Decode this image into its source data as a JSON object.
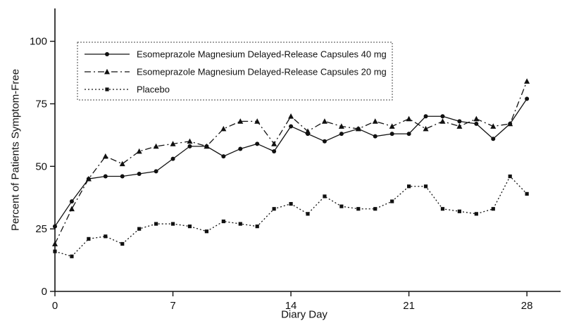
{
  "chart_data": {
    "type": "line",
    "title": "",
    "xlabel": "Diary Day",
    "ylabel": "Percent of Patients Symptom-Free",
    "xlim": [
      0,
      30
    ],
    "ylim": [
      0,
      112
    ],
    "x_ticks": [
      0,
      7,
      14,
      21,
      28
    ],
    "y_ticks": [
      0,
      25,
      50,
      75,
      100
    ],
    "grid": false,
    "legend_position": "upper-left",
    "line_color": "#111111",
    "background_color": "#ffffff",
    "x": [
      0,
      1,
      2,
      3,
      4,
      5,
      6,
      7,
      8,
      9,
      10,
      11,
      12,
      13,
      14,
      15,
      16,
      17,
      18,
      19,
      20,
      21,
      22,
      23,
      24,
      25,
      26,
      27,
      28
    ],
    "series": [
      {
        "name": "Esomeprazole Magnesium Delayed-Release Capsules 40 mg",
        "marker": "circle",
        "line": "solid",
        "values": [
          26,
          36,
          45,
          46,
          46,
          47,
          48,
          53,
          58,
          58,
          54,
          57,
          59,
          56,
          66,
          63,
          60,
          63,
          65,
          62,
          63,
          63,
          70,
          70,
          68,
          67,
          61,
          67,
          77
        ]
      },
      {
        "name": "Esomeprazole Magnesium Delayed-Release Capsules 20 mg",
        "marker": "triangle",
        "line": "dashdot",
        "values": [
          19,
          33,
          45,
          54,
          51,
          56,
          58,
          59,
          60,
          58,
          65,
          68,
          68,
          59,
          70,
          64,
          68,
          66,
          65,
          68,
          66,
          69,
          65,
          68,
          66,
          69,
          66,
          67,
          84
        ]
      },
      {
        "name": "Placebo",
        "marker": "square",
        "line": "dotted",
        "values": [
          16,
          14,
          21,
          22,
          19,
          25,
          27,
          27,
          26,
          24,
          28,
          27,
          26,
          33,
          35,
          31,
          38,
          34,
          33,
          33,
          36,
          42,
          42,
          33,
          32,
          31,
          33,
          46,
          39
        ]
      }
    ]
  }
}
